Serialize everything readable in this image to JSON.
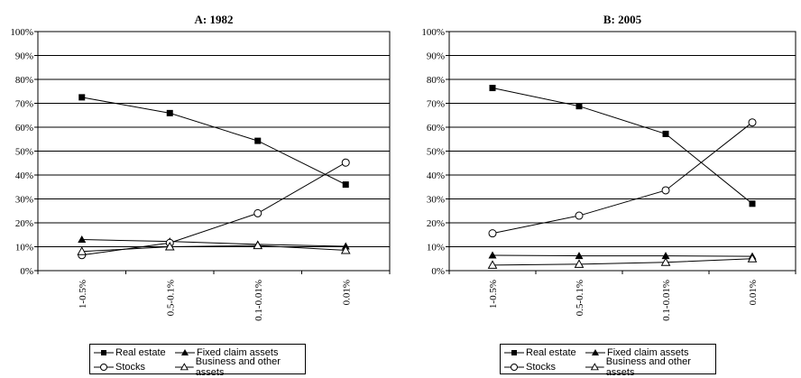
{
  "figure": {
    "panels": [
      {
        "title": "A: 1982"
      },
      {
        "title": "B: 2005"
      }
    ],
    "legend": {
      "real_estate": "Real estate",
      "fixed_claim": "Fixed claim assets",
      "stocks": "Stocks",
      "business": "Business and other assets"
    }
  },
  "chart_data": [
    {
      "type": "line",
      "title": "A: 1982",
      "categories": [
        "1-0.5%",
        "0.5-0.1%",
        "0.1-0.01%",
        "0.01%"
      ],
      "ylim": [
        0,
        100
      ],
      "yticks": [
        "0%",
        "10%",
        "20%",
        "30%",
        "40%",
        "50%",
        "60%",
        "70%",
        "80%",
        "90%",
        "100%"
      ],
      "grid": true,
      "legend_position": "bottom",
      "series": [
        {
          "name": "Real estate",
          "marker": "filled-square",
          "values": [
            72.5,
            65.9,
            54.3,
            36.0
          ]
        },
        {
          "name": "Fixed claim assets",
          "marker": "filled-triangle",
          "values": [
            13.0,
            12.2,
            11.0,
            10.2
          ]
        },
        {
          "name": "Stocks",
          "marker": "open-circle",
          "values": [
            6.5,
            11.6,
            24.0,
            45.2
          ]
        },
        {
          "name": "Business and other assets",
          "marker": "open-triangle",
          "values": [
            8.0,
            10.0,
            10.5,
            8.5
          ]
        }
      ]
    },
    {
      "type": "line",
      "title": "B: 2005",
      "categories": [
        "1-0.5%",
        "0.5-0.1%",
        "0.1-0.01%",
        "0.01%"
      ],
      "ylim": [
        0,
        100
      ],
      "yticks": [
        "0%",
        "10%",
        "20%",
        "30%",
        "40%",
        "50%",
        "60%",
        "70%",
        "80%",
        "90%",
        "100%"
      ],
      "grid": true,
      "legend_position": "bottom",
      "series": [
        {
          "name": "Real estate",
          "marker": "filled-square",
          "values": [
            76.4,
            68.8,
            57.2,
            28.0
          ]
        },
        {
          "name": "Fixed claim assets",
          "marker": "filled-triangle",
          "values": [
            6.4,
            6.2,
            6.2,
            6.0
          ]
        },
        {
          "name": "Stocks",
          "marker": "open-circle",
          "values": [
            15.6,
            23.0,
            33.6,
            62.0
          ]
        },
        {
          "name": "Business and other assets",
          "marker": "open-triangle",
          "values": [
            2.3,
            2.7,
            3.5,
            5.0
          ]
        }
      ]
    }
  ]
}
